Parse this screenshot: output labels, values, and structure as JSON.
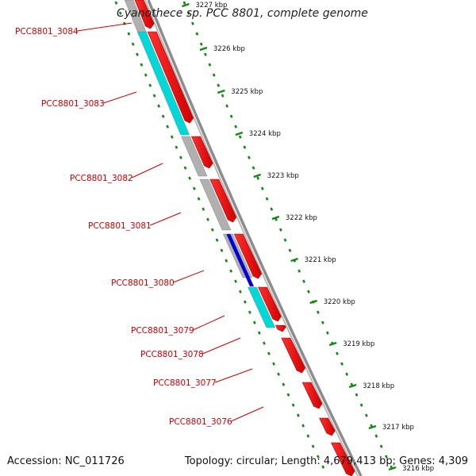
{
  "title": "Cyanothece sp. PCC 8801, complete genome",
  "footer": {
    "accession": "Accession: NC_011726",
    "topology": "Topology: circular; Length: 4,679,413 bp; Genes: 4,309"
  },
  "colors": {
    "forward_cds": "#ff0000",
    "reverse_cds": "#b0b0b0",
    "cyan_cds": "#00d8d8",
    "blue_cds": "#0000dd",
    "label": "#cc0000",
    "tick": "#118811",
    "backbone": "#8c8c8c"
  },
  "kbp_ticks": [
    {
      "label": "3227 kbp"
    },
    {
      "label": "3226 kbp"
    },
    {
      "label": "3225 kbp"
    },
    {
      "label": "3224 kbp"
    },
    {
      "label": "3223 kbp"
    },
    {
      "label": "3222 kbp"
    },
    {
      "label": "3221 kbp"
    },
    {
      "label": "3220 kbp"
    },
    {
      "label": "3219 kbp"
    },
    {
      "label": "3218 kbp"
    },
    {
      "label": "3217 kbp"
    },
    {
      "label": "3216 kbp"
    }
  ],
  "gene_labels": [
    "PCC8801_3084",
    "PCC8801_3083",
    "PCC8801_3082",
    "PCC8801_3081",
    "PCC8801_3080",
    "PCC8801_3079",
    "PCC8801_3078",
    "PCC8801_3077",
    "PCC8801_3076"
  ],
  "forward_genes": [
    "g1",
    "g2",
    "g3",
    "g4",
    "g5",
    "g6",
    "g7",
    "g8",
    "g9",
    "g10",
    "g11"
  ],
  "reverse_genes": [
    {
      "color": "gray"
    },
    {
      "color": "cyan"
    },
    {
      "color": "gray"
    },
    {
      "color": "gray"
    },
    {
      "color": "gray"
    },
    {
      "color": "blue"
    },
    {
      "color": "cyan"
    }
  ]
}
